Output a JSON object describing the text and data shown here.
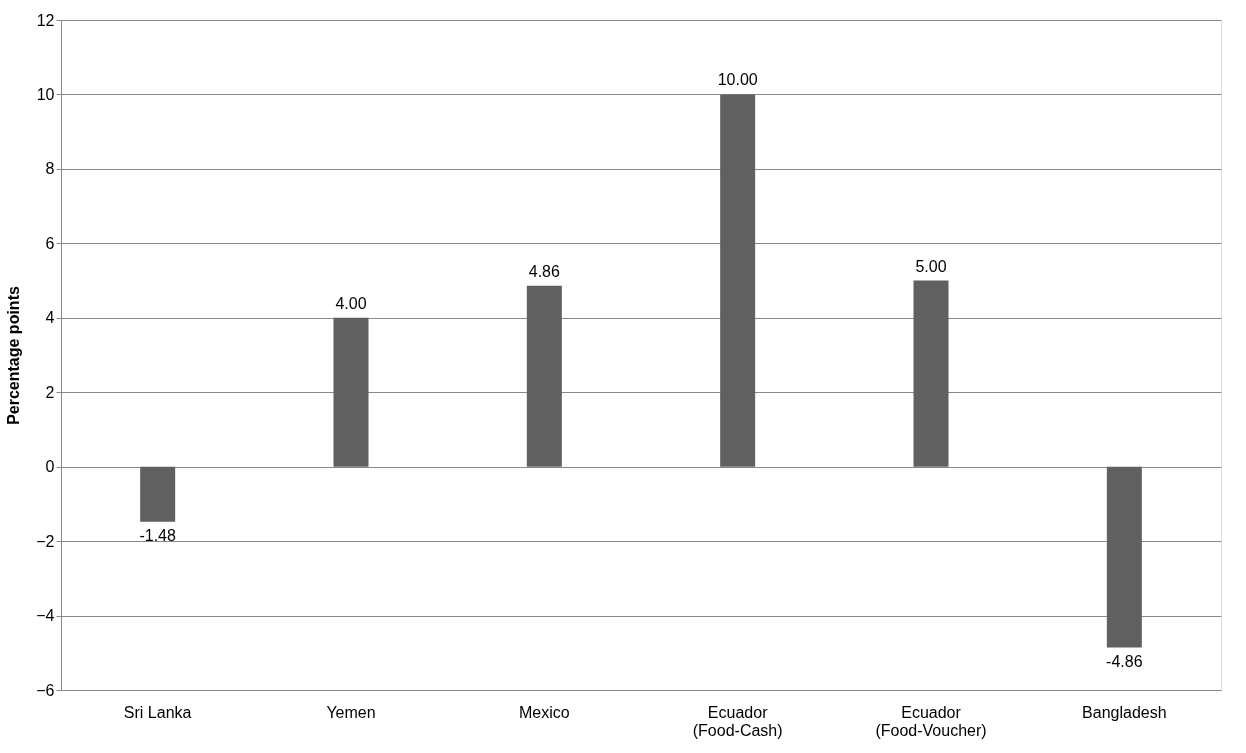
{
  "chart_data": {
    "type": "bar",
    "ylabel": "Percentage points",
    "categories": [
      "Sri Lanka",
      "Yemen",
      "Mexico",
      "Ecuador\n(Food-Cash)",
      "Ecuador\n(Food-Voucher)",
      "Bangladesh"
    ],
    "values": [
      -1.48,
      4,
      4.86,
      10,
      5,
      -4.86
    ],
    "value_labels": [
      "-1.48",
      "4.00",
      "4.86",
      "10.00",
      "5.00",
      "-4.86"
    ],
    "color": "#606060",
    "ylim": [
      -6,
      12
    ],
    "yticks": [
      -6,
      -4,
      -2,
      0,
      2,
      4,
      6,
      8,
      10,
      12
    ],
    "grid": "y"
  }
}
